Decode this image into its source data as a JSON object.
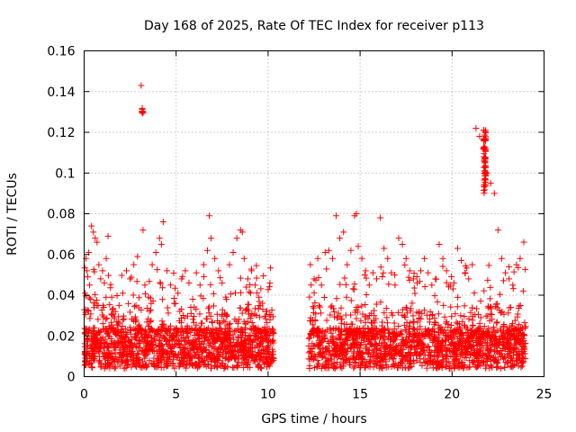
{
  "chart_data": {
    "type": "scatter",
    "title": "Day 168 of 2025, Rate Of TEC Index for receiver p113",
    "xlabel": "GPS time / hours",
    "ylabel": "ROTI / TECUs",
    "xlim": [
      0,
      25
    ],
    "ylim": [
      0,
      0.16
    ],
    "xticks": [
      0,
      5,
      10,
      15,
      20,
      25
    ],
    "yticks": [
      0,
      0.02,
      0.04,
      0.06,
      0.08,
      0.1,
      0.12,
      0.14,
      0.16
    ],
    "xtick_labels": [
      "0",
      "5",
      "10",
      "15",
      "20",
      "25"
    ],
    "ytick_labels": [
      "0",
      "0.02",
      "0.04",
      "0.06",
      "0.08",
      "0.1",
      "0.12",
      "0.14",
      "0.16"
    ],
    "grid": true,
    "marker": "+",
    "series": [
      {
        "name": "ROTI",
        "color": "#ff0000",
        "description_gap": [
          10.3,
          12.2
        ],
        "x": [
          0.05,
          0.1,
          0.15,
          0.2,
          0.25,
          0.3,
          0.35,
          0.4,
          0.5,
          0.6,
          0.7,
          0.8,
          0.9,
          1.0,
          1.1,
          1.2,
          1.3,
          1.5,
          1.7,
          1.9,
          2.1,
          2.3,
          2.5,
          2.7,
          2.9,
          3.1,
          3.15,
          3.2,
          3.3,
          3.5,
          3.7,
          3.9,
          4.1,
          4.2,
          4.3,
          4.5,
          4.7,
          4.9,
          5.1,
          5.3,
          5.5,
          5.7,
          5.9,
          6.1,
          6.3,
          6.5,
          6.7,
          6.8,
          6.9,
          7.1,
          7.3,
          7.5,
          7.7,
          7.9,
          8.1,
          8.3,
          8.5,
          8.6,
          8.7,
          8.9,
          9.1,
          9.3,
          9.5,
          9.7,
          9.9,
          10.1,
          12.3,
          12.5,
          12.7,
          12.9,
          13.1,
          13.3,
          13.5,
          13.7,
          13.9,
          14.1,
          14.3,
          14.5,
          14.7,
          14.8,
          14.9,
          15.1,
          15.3,
          15.5,
          15.7,
          15.9,
          16.1,
          16.3,
          16.5,
          16.7,
          16.9,
          17.1,
          17.3,
          17.5,
          17.7,
          17.9,
          18.1,
          18.3,
          18.5,
          18.7,
          18.9,
          19.1,
          19.3,
          19.5,
          19.7,
          19.9,
          20.1,
          20.3,
          20.5,
          20.7,
          20.9,
          21.1,
          21.3,
          21.5,
          21.7,
          21.8,
          21.9,
          22.1,
          22.3,
          22.5,
          22.7,
          22.9,
          23.1,
          23.3,
          23.5,
          23.7,
          23.9
        ],
        "y": [
          0.041,
          0.058,
          0.052,
          0.049,
          0.061,
          0.045,
          0.038,
          0.074,
          0.071,
          0.068,
          0.066,
          0.055,
          0.048,
          0.052,
          0.046,
          0.058,
          0.069,
          0.039,
          0.032,
          0.035,
          0.041,
          0.052,
          0.048,
          0.055,
          0.059,
          0.143,
          0.13,
          0.072,
          0.045,
          0.039,
          0.055,
          0.061,
          0.068,
          0.065,
          0.076,
          0.052,
          0.045,
          0.036,
          0.041,
          0.048,
          0.052,
          0.046,
          0.038,
          0.051,
          0.045,
          0.055,
          0.062,
          0.079,
          0.068,
          0.058,
          0.052,
          0.046,
          0.039,
          0.055,
          0.061,
          0.068,
          0.072,
          0.071,
          0.058,
          0.048,
          0.052,
          0.045,
          0.039,
          0.036,
          0.032,
          0.046,
          0.055,
          0.048,
          0.058,
          0.045,
          0.061,
          0.062,
          0.058,
          0.079,
          0.068,
          0.071,
          0.055,
          0.062,
          0.079,
          0.08,
          0.064,
          0.058,
          0.052,
          0.045,
          0.051,
          0.048,
          0.078,
          0.063,
          0.058,
          0.051,
          0.045,
          0.068,
          0.065,
          0.058,
          0.052,
          0.048,
          0.046,
          0.052,
          0.058,
          0.051,
          0.045,
          0.048,
          0.065,
          0.058,
          0.052,
          0.045,
          0.046,
          0.063,
          0.057,
          0.051,
          0.048,
          0.055,
          0.122,
          0.118,
          0.112,
          0.105,
          0.1,
          0.095,
          0.09,
          0.072,
          0.058,
          0.051,
          0.048,
          0.045,
          0.055,
          0.058,
          0.066
        ]
      }
    ]
  }
}
